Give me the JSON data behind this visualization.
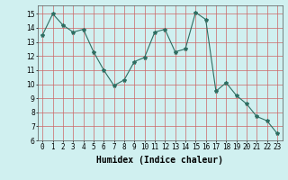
{
  "x": [
    0,
    1,
    2,
    3,
    4,
    5,
    6,
    7,
    8,
    9,
    10,
    11,
    12,
    13,
    14,
    15,
    16,
    17,
    18,
    19,
    20,
    21,
    22,
    23
  ],
  "y": [
    13.5,
    15.0,
    14.2,
    13.7,
    13.9,
    12.3,
    11.0,
    9.9,
    10.3,
    11.6,
    11.9,
    13.7,
    13.9,
    12.3,
    12.5,
    15.1,
    14.6,
    9.5,
    10.1,
    9.2,
    8.6,
    7.7,
    7.4,
    6.5
  ],
  "line_color": "#2e6e62",
  "marker": "*",
  "marker_size": 3,
  "bg_color": "#d0f0f0",
  "grid_color": "#cc6666",
  "xlabel": "Humidex (Indice chaleur)",
  "ylabel": "",
  "xlim": [
    -0.5,
    23.5
  ],
  "ylim": [
    6,
    15.6
  ],
  "yticks": [
    6,
    7,
    8,
    9,
    10,
    11,
    12,
    13,
    14,
    15
  ],
  "xticks": [
    0,
    1,
    2,
    3,
    4,
    5,
    6,
    7,
    8,
    9,
    10,
    11,
    12,
    13,
    14,
    15,
    16,
    17,
    18,
    19,
    20,
    21,
    22,
    23
  ],
  "tick_fontsize": 5.5,
  "label_fontsize": 7
}
